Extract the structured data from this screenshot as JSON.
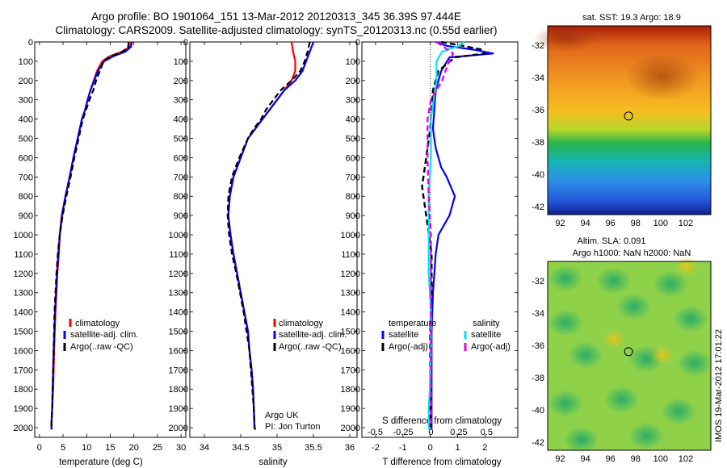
{
  "header": {
    "title_line1": "Argo profile: BO 1901064_151 13-Mar-2012 20120313_345 36.39S 97.444E",
    "title_line2": "Climatology: CARS2009. Satellite-adjusted climatology: synTS_20120313.nc (0.55d earlier)"
  },
  "colors": {
    "climatology": "#ff0000",
    "satellite": "#0000ff",
    "argo": "#000000",
    "salinity_satellite": "#00e5ee",
    "salinity_argo": "#ee00ee"
  },
  "depth_axis": {
    "ylim": [
      0,
      2050
    ],
    "ticks": [
      "0",
      "100",
      "200",
      "300",
      "400",
      "500",
      "600",
      "700",
      "800",
      "900",
      "1000",
      "1100",
      "1200",
      "1300",
      "1400",
      "1500",
      "1600",
      "1700",
      "1800",
      "1900",
      "2000"
    ]
  },
  "legend": {
    "climatology": "climatology",
    "satellite_adj": "satellite-adj. clim.",
    "argo_raw": "Argo(..raw -QC)"
  },
  "diff_legend": {
    "temperature_head": "temperature",
    "salinity_head": "salinity",
    "satellite": "satellite",
    "argo_adj": "Argo(-adj)"
  },
  "annotation": {
    "line1": "Argo UK",
    "line2": "PI: Jon Turton"
  },
  "maps": {
    "sst_title": "sat. SST: 19.3 Argo: 18.9",
    "sla_title1": "Altim. SLA: 0.091",
    "sla_title2": "Argo h1000: NaN h2000: NaN",
    "x_ticks": [
      "92",
      "94",
      "96",
      "98",
      "100",
      "102"
    ],
    "y_ticks": [
      "-32",
      "-34",
      "-36",
      "-38",
      "-40",
      "-42"
    ],
    "argo_position": {
      "lon": 97.444,
      "lat": -36.39
    },
    "xlim": [
      91,
      104
    ],
    "ylim": [
      -42.5,
      -30.8
    ]
  },
  "stamp": "IMOS 19-Mar-2012 17:01:22",
  "chart_data": [
    {
      "type": "line",
      "xlabel": "temperature (deg C)",
      "ylabel": "",
      "xlim": [
        -1,
        31
      ],
      "x_ticks": [
        "0",
        "5",
        "10",
        "15",
        "20",
        "25",
        "30"
      ],
      "ylim": [
        0,
        2050
      ],
      "series": [
        {
          "name": "climatology",
          "x": [
            19.4,
            19.2,
            17.5,
            14.8,
            13.3,
            12.2,
            11.5,
            10.8,
            10.2,
            9.7,
            9.0,
            8.1,
            7.2,
            6.4,
            5.5,
            4.7,
            4.3,
            4.1,
            3.8,
            3.6,
            3.4,
            3.25,
            3.1,
            3.0,
            2.9,
            2.8,
            2.7,
            2.6,
            2.55
          ],
          "depth": [
            0,
            25,
            50,
            75,
            100,
            150,
            200,
            250,
            300,
            350,
            400,
            500,
            600,
            700,
            800,
            900,
            1000,
            1100,
            1200,
            1300,
            1400,
            1500,
            1600,
            1700,
            1800,
            1850,
            1900,
            1950,
            2010
          ]
        },
        {
          "name": "satellite-adj. clim.",
          "x": [
            19.6,
            19.4,
            18.2,
            15.6,
            13.7,
            12.4,
            11.6,
            10.8,
            10.2,
            9.7,
            9.0,
            8.1,
            7.2,
            6.4,
            5.5,
            4.8,
            4.3,
            4.0,
            3.7,
            3.5,
            3.3,
            3.15,
            3.0,
            2.9,
            2.8,
            2.75,
            2.7,
            2.6,
            2.55
          ],
          "depth": [
            0,
            25,
            50,
            75,
            100,
            150,
            200,
            250,
            300,
            350,
            400,
            500,
            600,
            700,
            800,
            900,
            1000,
            1100,
            1200,
            1300,
            1400,
            1500,
            1600,
            1700,
            1800,
            1850,
            1900,
            1950,
            2010
          ]
        },
        {
          "name": "Argo(..raw -QC)",
          "x": [
            18.9,
            18.8,
            17.6,
            15.0,
            13.6,
            12.8,
            12.0,
            11.4,
            10.6,
            9.9,
            9.2,
            8.3,
            7.4,
            6.6,
            5.7,
            4.9,
            4.3,
            3.9,
            3.6,
            3.4,
            3.2,
            3.1,
            3.0,
            2.9,
            2.8,
            2.75,
            2.7,
            2.6,
            2.5
          ],
          "depth": [
            0,
            25,
            50,
            75,
            100,
            150,
            200,
            250,
            300,
            350,
            400,
            500,
            600,
            700,
            800,
            900,
            1000,
            1100,
            1200,
            1300,
            1400,
            1500,
            1600,
            1700,
            1800,
            1850,
            1900,
            1950,
            2000
          ]
        }
      ]
    },
    {
      "type": "line",
      "xlabel": "salinity",
      "ylabel": "",
      "xlim": [
        33.8,
        36.1
      ],
      "x_ticks": [
        "34",
        "34.5",
        "35",
        "35.5",
        "36"
      ],
      "ylim": [
        0,
        2050
      ],
      "series": [
        {
          "name": "climatology",
          "x": [
            35.2,
            35.22,
            35.25,
            35.25,
            35.2,
            35.1,
            35.0,
            34.9,
            34.8,
            34.7,
            34.6,
            34.5,
            34.4,
            34.35,
            34.33,
            34.36,
            34.4,
            34.45,
            34.5,
            34.55,
            34.6,
            34.62,
            34.65,
            34.67,
            34.68,
            34.69,
            34.7
          ],
          "depth": [
            0,
            50,
            100,
            150,
            200,
            250,
            300,
            350,
            400,
            450,
            500,
            600,
            700,
            800,
            900,
            1000,
            1100,
            1200,
            1300,
            1400,
            1500,
            1600,
            1700,
            1800,
            1900,
            2000,
            2010
          ]
        },
        {
          "name": "satellite-adj. clim.",
          "x": [
            35.5,
            35.45,
            35.4,
            35.35,
            35.25,
            35.1,
            35.0,
            34.9,
            34.8,
            34.7,
            34.6,
            34.5,
            34.4,
            34.35,
            34.33,
            34.36,
            34.4,
            34.45,
            34.5,
            34.55,
            34.6,
            34.62,
            34.65,
            34.67,
            34.68,
            34.69,
            34.7
          ],
          "depth": [
            0,
            50,
            100,
            150,
            200,
            250,
            300,
            350,
            400,
            450,
            500,
            600,
            700,
            800,
            900,
            1000,
            1100,
            1200,
            1300,
            1400,
            1500,
            1600,
            1700,
            1800,
            1900,
            2000,
            2010
          ]
        },
        {
          "name": "Argo(..raw -QC)",
          "x": [
            35.45,
            35.42,
            35.38,
            35.32,
            35.2,
            35.05,
            34.95,
            34.85,
            34.78,
            34.68,
            34.6,
            34.48,
            34.38,
            34.33,
            34.32,
            34.34,
            34.38,
            34.44,
            34.49,
            34.54,
            34.58,
            34.62,
            34.64,
            34.66,
            34.68,
            34.69,
            34.7
          ],
          "depth": [
            0,
            50,
            100,
            150,
            200,
            250,
            300,
            350,
            400,
            450,
            500,
            600,
            700,
            800,
            900,
            1000,
            1100,
            1200,
            1300,
            1400,
            1500,
            1600,
            1700,
            1800,
            1900,
            2000,
            2010
          ]
        }
      ]
    },
    {
      "type": "line",
      "xlabel": "T difference from climatology",
      "x2label": "S difference from climatology",
      "xlim": [
        -2.5,
        3.2
      ],
      "x_ticks": [
        "-2",
        "-1",
        "0",
        "1",
        "2"
      ],
      "x2_ticks": [
        "-0.5",
        "-0.25",
        "0",
        "0.25",
        "0.5"
      ],
      "ylim": [
        0,
        2050
      ],
      "series": [
        {
          "name": "temperature satellite",
          "x": [
            0.2,
            0.6,
            1.6,
            2.3,
            0.7,
            0.4,
            0.2,
            0.15,
            0.1,
            0.2,
            0.4,
            0.6,
            0.9,
            0.7,
            0.5,
            0.3,
            0.2,
            0.1,
            0.05,
            0.05,
            0.05,
            0.05,
            0.05
          ],
          "depth": [
            0,
            20,
            40,
            60,
            80,
            150,
            250,
            350,
            450,
            550,
            650,
            700,
            800,
            900,
            950,
            1000,
            1100,
            1300,
            1500,
            1700,
            1900,
            2000,
            2010
          ]
        },
        {
          "name": "temperature Argo(-adj)",
          "x": [
            0.4,
            1.2,
            1.9,
            2.0,
            0.9,
            0.3,
            0.1,
            0.05,
            0.0,
            -0.1,
            -0.2,
            -0.3,
            -0.2,
            -0.1,
            -0.05,
            0.05,
            0.05,
            0.0,
            0.0,
            0.0
          ],
          "depth": [
            0,
            20,
            40,
            60,
            80,
            150,
            250,
            350,
            450,
            550,
            650,
            750,
            850,
            950,
            1000,
            1100,
            1300,
            1500,
            1700,
            2000
          ]
        },
        {
          "name": "salinity satellite",
          "x": [
            0.3,
            0.25,
            0.1,
            0.05,
            0.05,
            0.0,
            0.0,
            -0.02,
            -0.02,
            -0.02,
            0.0,
            0.0,
            -0.01,
            -0.02,
            -0.02,
            -0.02
          ],
          "depth": [
            0,
            20,
            50,
            100,
            200,
            400,
            600,
            800,
            1000,
            1200,
            1400,
            1600,
            1800,
            1900,
            2000,
            2010
          ]
        },
        {
          "name": "salinity Argo(-adj)",
          "x": [
            0.05,
            0.2,
            0.15,
            0.1,
            0.0,
            -0.03,
            -0.03,
            -0.02,
            0.0,
            0.0,
            0.0,
            0.0,
            0.0,
            0.0
          ],
          "depth": [
            0,
            60,
            120,
            200,
            300,
            400,
            600,
            800,
            1000,
            1200,
            1400,
            1600,
            1800,
            2000
          ]
        }
      ]
    }
  ]
}
